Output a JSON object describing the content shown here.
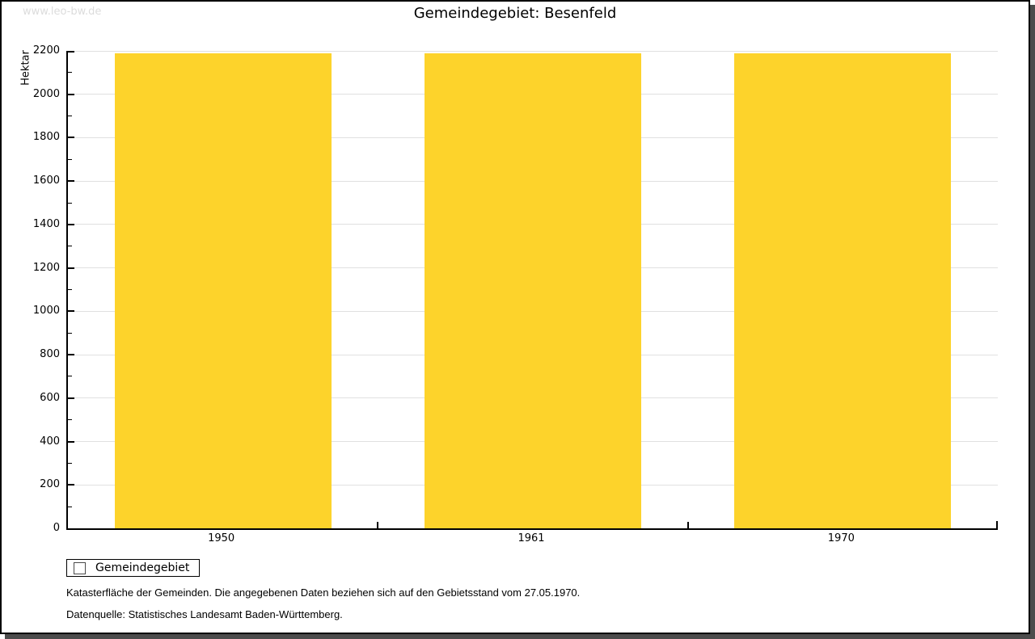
{
  "watermark": "www.leo-bw.de",
  "title": "Gemeindegebiet: Besenfeld",
  "chart_data": {
    "type": "bar",
    "title": "Gemeindegebiet: Besenfeld",
    "categories": [
      "1950",
      "1961",
      "1970"
    ],
    "series": [
      {
        "name": "Gemeindegebiet",
        "values": [
          2190,
          2190,
          2190
        ]
      }
    ],
    "xlabel": "",
    "ylabel": "Hektar",
    "ylim": [
      0,
      2200
    ],
    "ytick_major": 200,
    "ytick_minor": 100,
    "grid": true,
    "bar_color": "#FDD32B",
    "legend_position": "bottom-left"
  },
  "legend": {
    "label": "Gemeindegebiet",
    "swatch_color": "#FDD32B"
  },
  "footnotes": [
    "Katasterfläche der Gemeinden. Die angegebenen Daten beziehen sich auf den Gebietsstand vom 27.05.1970.",
    "Datenquelle: Statistisches Landesamt Baden-Württemberg."
  ],
  "colors": {
    "bar": "#FDD32B",
    "grid": "#e0e0e0",
    "axis": "#000000",
    "watermark": "#dcdcdc",
    "frame_shadow": "#4c4c4c",
    "background": "#ffffff"
  }
}
